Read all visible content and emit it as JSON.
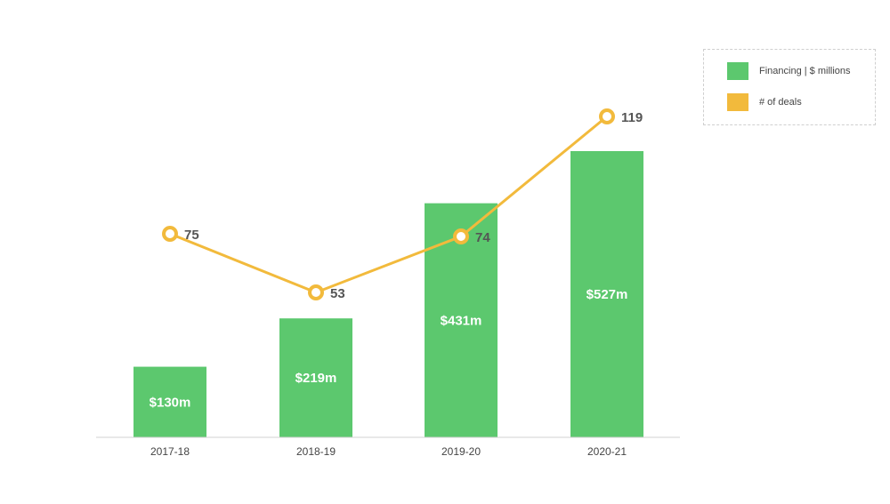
{
  "chart_data": {
    "type": "bar",
    "categories": [
      "2017-18",
      "2018-19",
      "2019-20",
      "2020-21"
    ],
    "series": [
      {
        "name": "Financing | $ millions",
        "kind": "bar",
        "values": [
          130,
          219,
          431,
          527
        ],
        "labels": [
          "$130m",
          "$219m",
          "$431m",
          "$527m"
        ],
        "color": "#5cc86e"
      },
      {
        "name": "# of deals",
        "kind": "line",
        "values": [
          75,
          53,
          74,
          119
        ],
        "labels": [
          "75",
          "53",
          "74",
          "119"
        ],
        "color": "#f2ba3c"
      }
    ],
    "title": "",
    "xlabel": "",
    "ylabel": "",
    "grid": false,
    "legend": "top-right"
  },
  "legend": {
    "items": [
      {
        "label": "Financing | $ millions",
        "color": "#5cc86e"
      },
      {
        "label": "# of deals",
        "color": "#f2ba3c"
      }
    ]
  }
}
